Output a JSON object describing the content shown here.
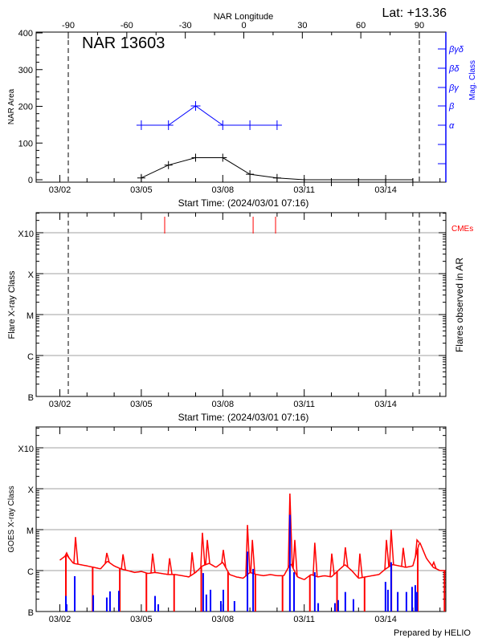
{
  "colors": {
    "axis": "#000000",
    "grid": "#a0a0a0",
    "mag_class": "#0000ff",
    "goes": "#ff0000",
    "flare": "#0000ff",
    "cme": "#ff0000"
  },
  "header": {
    "latitude": "Lat: +13.36",
    "region": "NAR 13603",
    "longitude_axis_title": "NAR Longitude"
  },
  "footer": {
    "credit": "Prepared by HELIO"
  },
  "shared_x": {
    "tick_labels": [
      "03/02",
      "03/05",
      "03/08",
      "03/11",
      "03/14"
    ],
    "xlabel": "Start Time: (2024/03/01 07:16)",
    "minor_ticks": "daily"
  },
  "chart_data": [
    {
      "type": "line",
      "panel": "area-and-magnetic-class",
      "ylabel": "NAR Area",
      "ylim": [
        0,
        400
      ],
      "yticks": [
        "0",
        "100",
        "200",
        "300",
        "400"
      ],
      "y2label": "Mag. Class",
      "y2ticks": [
        "α",
        "β",
        "βγ",
        "βδ",
        "βγδ"
      ],
      "top_axis": {
        "label": "NAR Longitude",
        "ticks": [
          "-90",
          "-60",
          "-30",
          "0",
          "30",
          "60",
          "90"
        ],
        "range": [
          -90,
          90
        ]
      },
      "limb_markers_longitude": [
        -90,
        90
      ],
      "series": [
        {
          "role": "area",
          "color": "#000000",
          "x": [
            "03/05 00:00",
            "03/06 00:00",
            "03/07 00:00",
            "03/08 00:00",
            "03/09 00:00",
            "03/10 00:00",
            "03/11 00:00",
            "03/12 00:00",
            "03/13 00:00",
            "03/14 00:00",
            "03/15 00:00"
          ],
          "values": [
            5,
            40,
            60,
            60,
            15,
            5,
            0,
            0,
            0,
            0,
            0
          ]
        },
        {
          "role": "mag_class",
          "color": "#0000ff",
          "x": [
            "03/05 00:00",
            "03/06 00:00",
            "03/07 00:00",
            "03/08 00:00",
            "03/09 00:00",
            "03/10 00:00"
          ],
          "values": [
            "α",
            "α",
            "β",
            "α",
            "α",
            "α"
          ]
        }
      ]
    },
    {
      "type": "event",
      "panel": "flares-in-ar",
      "ylabel": "Flare X-ray Class",
      "y2label": "Flares observed in AR",
      "yticks": [
        "B",
        "C",
        "M",
        "X",
        "X10"
      ],
      "grid": true,
      "cme_label": "CMEs",
      "cme_times": [
        "03/05 20:40",
        "03/09 02:50",
        "03/09 22:40"
      ],
      "flares": []
    },
    {
      "type": "line",
      "panel": "goes-xray",
      "ylabel": "GOES X-ray Class",
      "yticks": [
        "B",
        "C",
        "M",
        "X",
        "X10"
      ],
      "yscale": "log",
      "grid": true,
      "goes_flux": {
        "unit": "W/m^2",
        "start": "03/02 00:00",
        "step_hours": 6,
        "values": [
          1.8e-06,
          2.4e-06,
          1.5e-06,
          1.4e-06,
          1.3e-06,
          1.2e-06,
          1.1e-06,
          1.7e-06,
          1.3e-06,
          1.1e-06,
          1e-06,
          9e-07,
          9.5e-07,
          8.5e-07,
          9e-07,
          8.5e-07,
          8e-07,
          8e-07,
          7.5e-07,
          7e-07,
          9e-07,
          1.3e-06,
          1.5e-06,
          1.2e-06,
          1.6e-06,
          8e-07,
          7e-07,
          6.5e-07,
          9e-07,
          8e-07,
          7.5e-07,
          8e-07,
          7.5e-07,
          7.5e-07,
          1.5e-06,
          7e-07,
          6e-07,
          8e-07,
          7e-07,
          7.5e-07,
          7e-07,
          1e-06,
          1.4e-06,
          1e-06,
          6.5e-07,
          7e-07,
          7.5e-07,
          8e-07,
          1.1e-06,
          1.4e-06,
          1.3e-06,
          1.2e-06,
          1.3e-06,
          5e-06,
          2e-06,
          1.2e-06,
          1e-06,
          1e-06
        ]
      },
      "goes_spikes": [
        [
          "03/02 06:00",
          2.7e-06
        ],
        [
          "03/02 13:50",
          6.6e-06
        ],
        [
          "03/03 17:30",
          2.7e-06
        ],
        [
          "03/04 07:50",
          2.5e-06
        ],
        [
          "03/05 10:00",
          2.6e-06
        ],
        [
          "03/06 01:00",
          2e-06
        ],
        [
          "03/06 20:50",
          2.8e-06
        ],
        [
          "03/07 06:00",
          8.4e-06
        ],
        [
          "03/07 10:20",
          5.6e-06
        ],
        [
          "03/08 00:30",
          3.2e-06
        ],
        [
          "03/08 21:50",
          1.3e-05
        ],
        [
          "03/09 02:10",
          5.6e-06
        ],
        [
          "03/10 11:20",
          7.6e-05
        ],
        [
          "03/10 15:40",
          5.6e-06
        ],
        [
          "03/11 09:20",
          4.8e-06
        ],
        [
          "03/12 00:20",
          2.6e-06
        ],
        [
          "03/12 12:20",
          3.7e-06
        ],
        [
          "03/13 01:10",
          2.6e-06
        ],
        [
          "03/14 00:40",
          5.6e-06
        ],
        [
          "03/14 04:50",
          1e-05
        ],
        [
          "03/14 15:30",
          3.6e-06
        ],
        [
          "03/15 03:40",
          5.6e-06
        ],
        [
          "03/15 18:30",
          1.6e-06
        ]
      ],
      "goes_data_gaps": [
        "03/02 05:20",
        "03/03 05:00",
        "03/04 05:00",
        "03/05 04:30",
        "03/06 05:00",
        "03/07 05:00",
        "03/08 04:40",
        "03/09 04:50",
        "03/10 04:50",
        "03/11 05:00",
        "03/12 05:00",
        "03/13 05:20",
        "03/14 05:00",
        "03/15 04:20",
        "03/16 04:00"
      ],
      "flares": [
        [
          "03/02 05:20",
          2.4e-07
        ],
        [
          "03/02 06:00",
          1.5e-07
        ],
        [
          "03/02 13:10",
          7.3e-07
        ],
        [
          "03/03 05:30",
          2.5e-07
        ],
        [
          "03/03 17:30",
          2.2e-07
        ],
        [
          "03/03 20:20",
          3.1e-07
        ],
        [
          "03/04 04:10",
          3.2e-07
        ],
        [
          "03/05 12:10",
          2.4e-07
        ],
        [
          "03/05 15:00",
          1.5e-07
        ],
        [
          "03/07 06:40",
          8.7e-07
        ],
        [
          "03/07 09:30",
          2.6e-07
        ],
        [
          "03/07 13:10",
          3.4e-07
        ],
        [
          "03/07 22:20",
          1.8e-07
        ],
        [
          "03/08 00:30",
          3.4e-07
        ],
        [
          "03/08 10:20",
          1.8e-07
        ],
        [
          "03/08 21:50",
          2.9e-06
        ],
        [
          "03/09 02:50",
          1.1e-06
        ],
        [
          "03/10 11:20",
          2.3e-05
        ],
        [
          "03/10 15:00",
          9.1e-07
        ],
        [
          "03/11 09:20",
          9.1e-07
        ],
        [
          "03/11 12:20",
          1.6e-07
        ],
        [
          "03/12 03:10",
          1.6e-07
        ],
        [
          "03/12 06:00",
          1.9e-07
        ],
        [
          "03/12 12:20",
          3e-07
        ],
        [
          "03/12 19:30",
          2e-07
        ],
        [
          "03/13 23:50",
          5.3e-07
        ],
        [
          "03/14 02:00",
          3.4e-07
        ],
        [
          "03/14 04:50",
          1.6e-06
        ],
        [
          "03/14 10:40",
          3e-07
        ],
        [
          "03/14 18:20",
          3e-07
        ],
        [
          "03/14 23:20",
          4e-07
        ],
        [
          "03/15 02:10",
          4.4e-07
        ],
        [
          "03/15 03:40",
          3e-07
        ]
      ]
    }
  ]
}
